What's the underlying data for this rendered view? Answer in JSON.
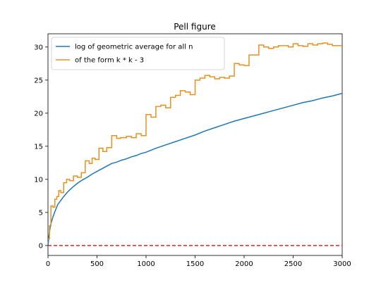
{
  "chart_data": {
    "type": "line",
    "title": "Pell figure",
    "xlabel": "",
    "ylabel": "",
    "xlim": [
      0,
      3000
    ],
    "ylim": [
      -1.5,
      32
    ],
    "x_ticks": [
      0,
      500,
      1000,
      1500,
      2000,
      2500,
      3000
    ],
    "y_ticks": [
      0,
      5,
      10,
      15,
      20,
      25,
      30
    ],
    "grid": false,
    "legend_position": "top-left",
    "colors": {
      "blue": "#1f77b4",
      "orange": "#e8901f",
      "red": "#d62728"
    },
    "series": [
      {
        "name": "log of geometric average for all n",
        "color": "#1f77b4",
        "style": "line",
        "x": [
          0,
          10,
          25,
          50,
          75,
          100,
          150,
          200,
          250,
          300,
          350,
          400,
          450,
          500,
          550,
          600,
          650,
          700,
          750,
          800,
          850,
          900,
          950,
          1000,
          1100,
          1200,
          1300,
          1400,
          1500,
          1600,
          1700,
          1800,
          1900,
          2000,
          2100,
          2200,
          2300,
          2400,
          2500,
          2600,
          2700,
          2800,
          2900,
          3000
        ],
        "y": [
          0.0,
          1.5,
          3.0,
          4.3,
          5.3,
          6.2,
          7.2,
          8.1,
          8.8,
          9.4,
          9.9,
          10.3,
          10.8,
          11.2,
          11.6,
          12.0,
          12.4,
          12.6,
          12.9,
          13.1,
          13.4,
          13.6,
          13.9,
          14.1,
          14.7,
          15.2,
          15.7,
          16.2,
          16.7,
          17.3,
          17.8,
          18.3,
          18.8,
          19.2,
          19.6,
          20.0,
          20.4,
          20.8,
          21.2,
          21.6,
          21.9,
          22.3,
          22.6,
          23.0
        ]
      },
      {
        "name": "of the form k * k - 3",
        "color": "#e8901f",
        "style": "step",
        "x": [
          0,
          15,
          30,
          50,
          70,
          90,
          110,
          130,
          160,
          190,
          220,
          260,
          300,
          340,
          380,
          420,
          450,
          480,
          520,
          560,
          600,
          650,
          700,
          740,
          800,
          850,
          900,
          950,
          1000,
          1050,
          1100,
          1150,
          1200,
          1250,
          1300,
          1350,
          1400,
          1450,
          1500,
          1550,
          1600,
          1650,
          1700,
          1750,
          1800,
          1850,
          1900,
          1950,
          2000,
          2050,
          2100,
          2150,
          2200,
          2250,
          2300,
          2350,
          2400,
          2450,
          2500,
          2550,
          2600,
          2650,
          2700,
          2750,
          2800,
          2850,
          2900,
          2950,
          3000
        ],
        "y": [
          1.0,
          3.0,
          6.0,
          5.8,
          7.0,
          7.4,
          8.3,
          8.0,
          9.5,
          10.0,
          9.8,
          10.5,
          10.3,
          11.0,
          12.8,
          12.4,
          13.2,
          13.0,
          14.7,
          14.2,
          14.8,
          16.6,
          16.2,
          16.3,
          16.5,
          16.3,
          16.9,
          16.6,
          19.8,
          19.4,
          21.0,
          21.2,
          20.8,
          22.4,
          22.7,
          23.4,
          23.2,
          22.8,
          25.0,
          25.3,
          25.7,
          25.5,
          25.2,
          25.4,
          25.3,
          25.6,
          27.5,
          27.3,
          27.2,
          28.8,
          28.8,
          30.3,
          30.0,
          29.8,
          30.0,
          30.2,
          30.2,
          30.0,
          30.5,
          30.2,
          30.1,
          30.5,
          30.3,
          30.5,
          30.6,
          30.4,
          30.2,
          30.2,
          30.2
        ]
      },
      {
        "name": "",
        "color": "#d62728",
        "style": "dashed",
        "x": [
          0,
          3000
        ],
        "y": [
          0,
          0
        ]
      }
    ]
  }
}
